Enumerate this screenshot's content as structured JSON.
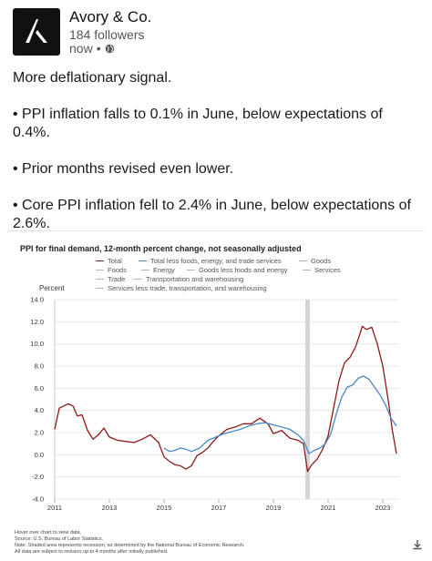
{
  "header": {
    "company_name": "Avory & Co.",
    "followers": "184 followers",
    "time": "now",
    "separator": "•",
    "visibility_icon": "globe-icon"
  },
  "post": {
    "intro": "More deflationary signal.",
    "bullets": [
      "• PPI inflation falls to 0.1% in June, below expectations of 0.4%.",
      "• Prior months revised even lower.",
      "• Core PPI inflation fell to 2.4% in June, below expectations of 2.6%."
    ]
  },
  "chart_card": {
    "footer_lines": [
      "Hover over chart to view data.",
      "Source: U.S. Bureau of Labor Statistics.",
      "Note: Shaded area represents recession, as determined by the National Bureau of Economic Research.",
      "All data are subject to revision up to 4 months after initially published."
    ],
    "download_icon": "download-icon"
  },
  "chart_data": {
    "type": "line",
    "title": "PPI for final demand, 12-month percent change, not seasonally adjusted",
    "ylabel": "Percent",
    "xlabel": "",
    "ylim": [
      -4.0,
      14.0
    ],
    "yticks": [
      "14.0",
      "12.0",
      "10.0",
      "8.0",
      "6.0",
      "4.0",
      "2.0",
      "0.0",
      "-2.0",
      "-4.0"
    ],
    "xticks": [
      "2011",
      "2013",
      "2015",
      "2017",
      "2019",
      "2021",
      "2023"
    ],
    "xlim": [
      2011.0,
      2023.6
    ],
    "grid": true,
    "recession": [
      2020.17,
      2020.33
    ],
    "legend": [
      {
        "name": "Total",
        "color": "#8b1a1a"
      },
      {
        "name": "Total less foods, energy, and trade services",
        "color": "#4a86c5"
      },
      {
        "name": "Goods",
        "color": "#b5b5b5"
      },
      {
        "name": "Foods",
        "color": "#b5b5b5"
      },
      {
        "name": "Energy",
        "color": "#b5b5b5"
      },
      {
        "name": "Goods less foods and energy",
        "color": "#b5b5b5"
      },
      {
        "name": "Services",
        "color": "#b5b5b5"
      },
      {
        "name": "Trade",
        "color": "#b5b5b5"
      },
      {
        "name": "Transportation and warehousing",
        "color": "#b5b5b5"
      },
      {
        "name": "Services less trade, transportation, and warehousing",
        "color": "#b5b5b5"
      }
    ],
    "series": [
      {
        "name": "Total",
        "color": "#8b1a1a",
        "x": [
          2011.0,
          2011.17,
          2011.33,
          2011.5,
          2011.67,
          2011.83,
          2012.0,
          2012.2,
          2012.4,
          2012.6,
          2012.8,
          2013.0,
          2013.3,
          2013.6,
          2013.9,
          2014.2,
          2014.5,
          2014.8,
          2015.0,
          2015.2,
          2015.4,
          2015.6,
          2015.8,
          2016.0,
          2016.2,
          2016.4,
          2016.6,
          2016.8,
          2017.0,
          2017.3,
          2017.6,
          2017.9,
          2018.2,
          2018.5,
          2018.8,
          2019.0,
          2019.3,
          2019.6,
          2019.9,
          2020.1,
          2020.25,
          2020.4,
          2020.6,
          2020.8,
          2021.0,
          2021.2,
          2021.4,
          2021.6,
          2021.8,
          2022.0,
          2022.15,
          2022.25,
          2022.4,
          2022.6,
          2022.8,
          2023.0,
          2023.2,
          2023.35,
          2023.5
        ],
        "y": [
          2.3,
          4.2,
          4.4,
          4.6,
          4.4,
          3.5,
          3.6,
          2.2,
          1.4,
          1.8,
          2.4,
          1.6,
          1.3,
          1.2,
          1.1,
          1.4,
          1.8,
          1.1,
          -0.2,
          -0.6,
          -0.9,
          -1.0,
          -1.3,
          -1.0,
          -0.1,
          0.2,
          0.6,
          1.2,
          1.7,
          2.3,
          2.5,
          2.8,
          2.8,
          3.3,
          2.8,
          1.9,
          2.2,
          1.5,
          1.3,
          1.0,
          -1.5,
          -0.9,
          -0.4,
          0.5,
          1.7,
          4.2,
          6.7,
          8.3,
          8.8,
          9.7,
          10.8,
          11.6,
          11.3,
          11.5,
          10.0,
          8.0,
          4.9,
          2.2,
          0.1
        ]
      },
      {
        "name": "Total less foods, energy, and trade services",
        "color": "#4a86c5",
        "x": [
          2015.0,
          2015.2,
          2015.4,
          2015.6,
          2015.8,
          2016.0,
          2016.3,
          2016.6,
          2016.9,
          2017.2,
          2017.5,
          2017.8,
          2018.1,
          2018.4,
          2018.7,
          2019.0,
          2019.3,
          2019.6,
          2019.9,
          2020.1,
          2020.3,
          2020.5,
          2020.7,
          2020.9,
          2021.1,
          2021.3,
          2021.5,
          2021.7,
          2021.9,
          2022.1,
          2022.3,
          2022.5,
          2022.7,
          2022.9,
          2023.1,
          2023.3,
          2023.5
        ],
        "y": [
          0.6,
          0.3,
          0.4,
          0.6,
          0.5,
          0.3,
          0.6,
          1.3,
          1.6,
          1.9,
          2.1,
          2.3,
          2.6,
          2.8,
          2.9,
          2.7,
          2.5,
          2.3,
          1.8,
          1.3,
          0.1,
          0.4,
          0.6,
          1.0,
          1.9,
          3.7,
          5.2,
          6.1,
          6.3,
          6.9,
          7.1,
          6.8,
          6.1,
          5.4,
          4.5,
          3.3,
          2.6
        ]
      }
    ]
  }
}
